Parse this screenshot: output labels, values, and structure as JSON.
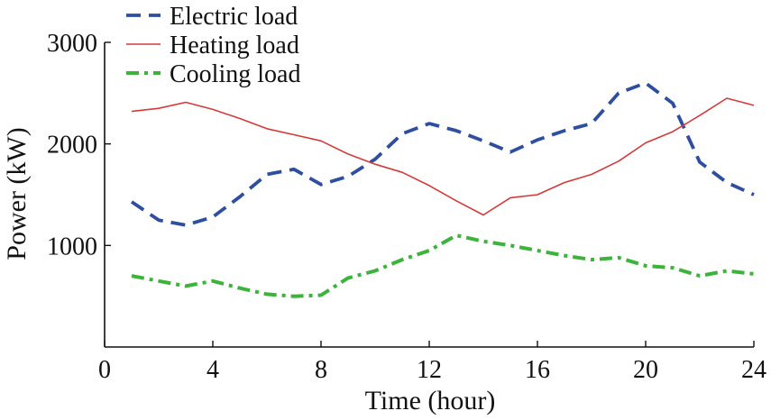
{
  "chart_data": {
    "type": "line",
    "xlabel": "Time (hour)",
    "ylabel": "Power (kW)",
    "xlim": [
      0,
      24
    ],
    "ylim": [
      0,
      3000
    ],
    "xticks": [
      0,
      4,
      8,
      12,
      16,
      20,
      24
    ],
    "yticks": [
      1000,
      2000,
      3000
    ],
    "grid": false,
    "legend_position": "top-left",
    "x": [
      1,
      2,
      3,
      4,
      5,
      6,
      7,
      8,
      9,
      10,
      11,
      12,
      13,
      14,
      15,
      16,
      17,
      18,
      19,
      20,
      21,
      22,
      23,
      24
    ],
    "series": [
      {
        "name": "Electric load",
        "color": "#2e4fa0",
        "style": "dashed",
        "values": [
          1430,
          1250,
          1200,
          1280,
          1480,
          1700,
          1750,
          1600,
          1680,
          1850,
          2100,
          2200,
          2130,
          2030,
          1920,
          2040,
          2130,
          2200,
          2500,
          2600,
          2400,
          1820,
          1620,
          1500
        ]
      },
      {
        "name": "Heating load",
        "color": "#d43a3a",
        "style": "solid",
        "values": [
          2320,
          2350,
          2410,
          2340,
          2250,
          2150,
          2090,
          2030,
          1900,
          1800,
          1720,
          1590,
          1440,
          1300,
          1470,
          1500,
          1620,
          1700,
          1830,
          2010,
          2120,
          2280,
          2450,
          2380
        ]
      },
      {
        "name": "Cooling load",
        "color": "#3cb43c",
        "style": "dashdot",
        "values": [
          700,
          650,
          600,
          650,
          580,
          520,
          500,
          510,
          680,
          750,
          860,
          950,
          1100,
          1040,
          1000,
          950,
          900,
          860,
          880,
          800,
          780,
          700,
          750,
          720
        ]
      }
    ]
  }
}
